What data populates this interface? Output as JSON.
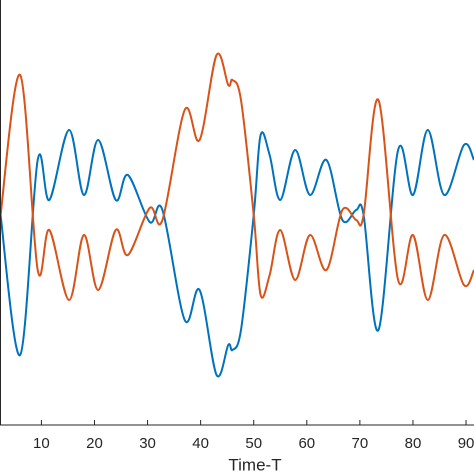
{
  "chart_data": {
    "type": "line",
    "x_label": "Time-T",
    "x": [
      2.2,
      6,
      9.3,
      11.5,
      15.2,
      18,
      20.7,
      24,
      26.3,
      30.4,
      32.8,
      37,
      39.8,
      43,
      45.2,
      46,
      47.6,
      50,
      51.3,
      53,
      55,
      57.8,
      60.6,
      63.7,
      66.7,
      69.3,
      70.7,
      73.5,
      77.2,
      80,
      82.8,
      85.9,
      89.6,
      91.5
    ],
    "series": [
      {
        "color": "#0072bd",
        "values": [
          0.05,
          -1.4,
          0.55,
          0.15,
          0.85,
          0.2,
          0.75,
          0.15,
          0.4,
          -0.07,
          0.05,
          -1.05,
          -0.75,
          -1.6,
          -1.3,
          -1.35,
          -1.15,
          0.0,
          0.8,
          0.6,
          0.15,
          0.65,
          0.2,
          0.55,
          -0.05,
          0.05,
          0.0,
          -1.15,
          0.65,
          0.2,
          0.85,
          0.2,
          0.7,
          0.55
        ]
      },
      {
        "color": "#d95319",
        "values": [
          -0.05,
          1.4,
          -0.55,
          -0.15,
          -0.85,
          -0.2,
          -0.75,
          -0.15,
          -0.4,
          0.07,
          -0.05,
          1.05,
          0.75,
          1.6,
          1.3,
          1.35,
          1.15,
          0.0,
          -0.8,
          -0.6,
          -0.15,
          -0.65,
          -0.2,
          -0.55,
          0.05,
          -0.05,
          0.0,
          1.15,
          -0.65,
          -0.2,
          -0.85,
          -0.2,
          -0.7,
          -0.55
        ]
      }
    ],
    "xlim": [
      2.2,
      91.5
    ],
    "ylim": [
      -2.1,
      2.15
    ],
    "xticks": [
      10,
      20,
      30,
      40,
      50,
      60,
      70,
      80,
      90
    ]
  }
}
